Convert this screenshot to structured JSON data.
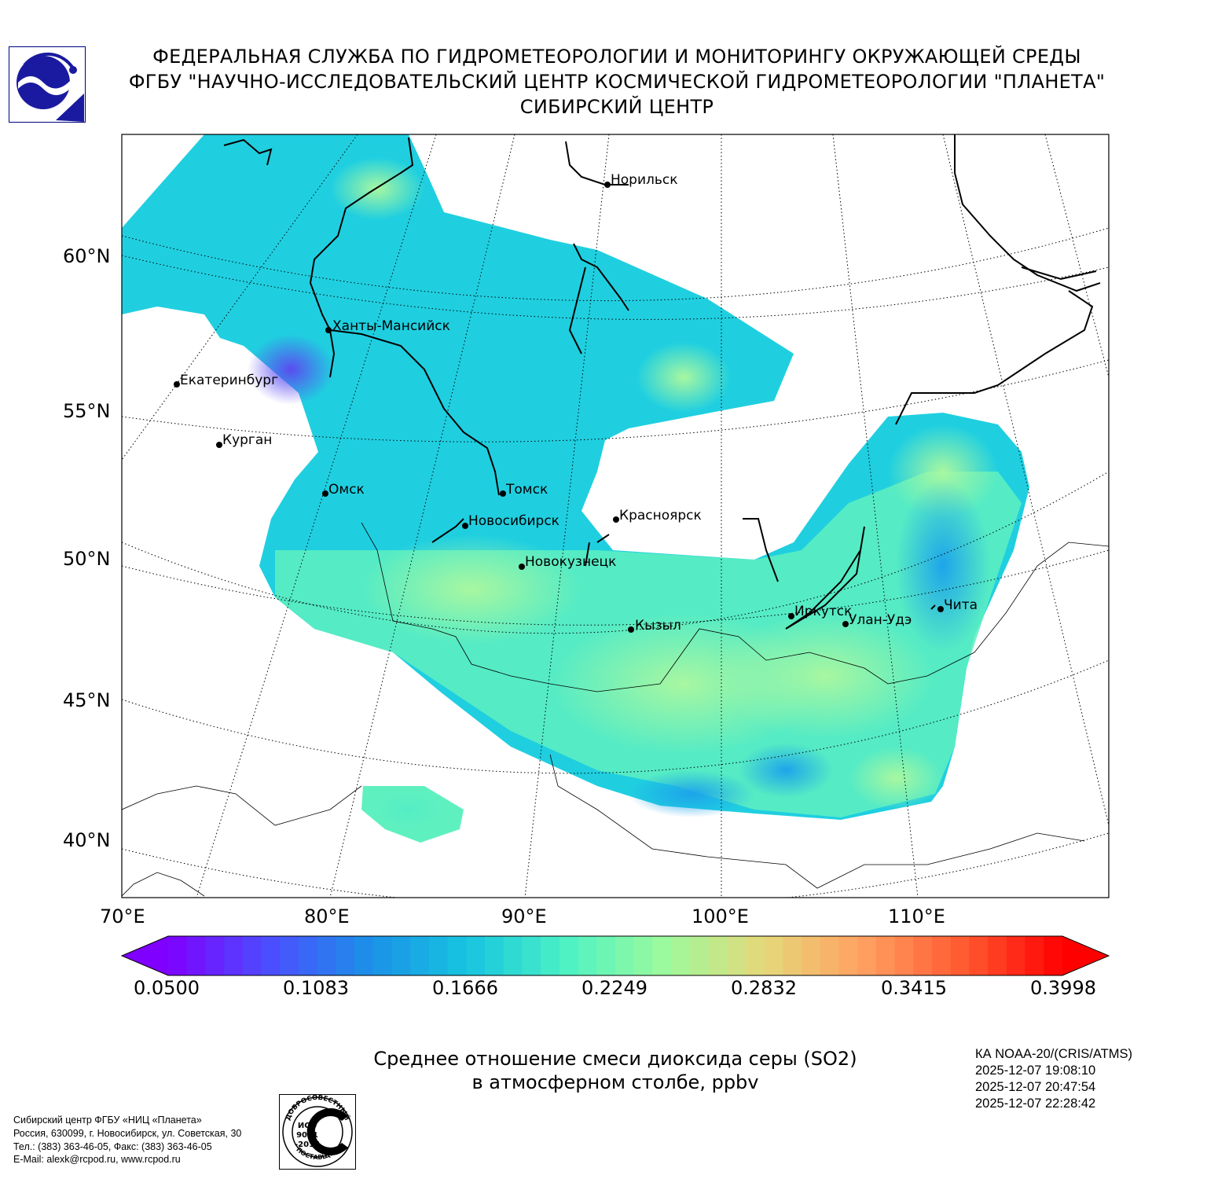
{
  "header": {
    "line1": "ФЕДЕРАЛЬНАЯ СЛУЖБА ПО ГИДРОМЕТЕОРОЛОГИИ И МОНИТОРИНГУ ОКРУЖАЮЩЕЙ СРЕДЫ",
    "line2": "ФГБУ \"НАУЧНО-ИССЛЕДОВАТЕЛЬСКИЙ ЦЕНТР КОСМИЧЕСКОЙ ГИДРОМЕТЕОРОЛОГИИ \"ПЛАНЕТА\"",
    "line3": "СИБИРСКИЙ ЦЕНТР"
  },
  "map": {
    "lat_labels": [
      "60°N",
      "55°N",
      "50°N",
      "45°N",
      "40°N"
    ],
    "lon_labels": [
      "70°E",
      "80°E",
      "90°E",
      "100°E",
      "110°E"
    ],
    "cities": [
      {
        "name": "Норильск"
      },
      {
        "name": "Ханты-Мансийск"
      },
      {
        "name": "Екатеринбург"
      },
      {
        "name": "Курган"
      },
      {
        "name": "Омск"
      },
      {
        "name": "Томск"
      },
      {
        "name": "Новосибирск"
      },
      {
        "name": "Красноярск"
      },
      {
        "name": "Новокузнецк"
      },
      {
        "name": "Кызыл"
      },
      {
        "name": "Иркутск"
      },
      {
        "name": "Улан-Удэ"
      },
      {
        "name": "Чита"
      }
    ]
  },
  "colorbar": {
    "tick_labels": [
      "0.0500",
      "0.1083",
      "0.1666",
      "0.2249",
      "0.2832",
      "0.3415",
      "0.3998"
    ],
    "min": 0.05,
    "max": 0.3998,
    "colors": [
      "#7f00ff",
      "#4c4cff",
      "#1c8fe8",
      "#16c4e0",
      "#4cf2c4",
      "#9cfa9c",
      "#e6d87a",
      "#ffa060",
      "#ff5a30",
      "#ff0000"
    ]
  },
  "caption": {
    "line1": "Среднее отношение смеси диоксида серы (SO2)",
    "line2": "в атмосферном столбе, ppbv"
  },
  "satellite": {
    "name": "КА NOAA-20/(CRIS/ATMS)",
    "times": [
      "2025-12-07 19:08:10",
      "2025-12-07 20:47:54",
      "2025-12-07 22:28:42"
    ]
  },
  "footer": {
    "lines": [
      "Сибирский центр ФГБУ «НИЦ «Планета»",
      "Россия, 630099, г. Новосибирск, ул. Советская, 30",
      "Тел.: (383) 363-46-05, Факс: (383) 363-46-05",
      "E-Mail: alexk@rcpod.ru, www.rcpod.ru"
    ]
  },
  "iso_badge": {
    "top_text": "ДОБРОСОВЕСТНЫЙ",
    "mid1": "ИСО",
    "mid2": "9001",
    "mid3": "-2015",
    "bottom_text": "ПОСТАВЩИК"
  }
}
